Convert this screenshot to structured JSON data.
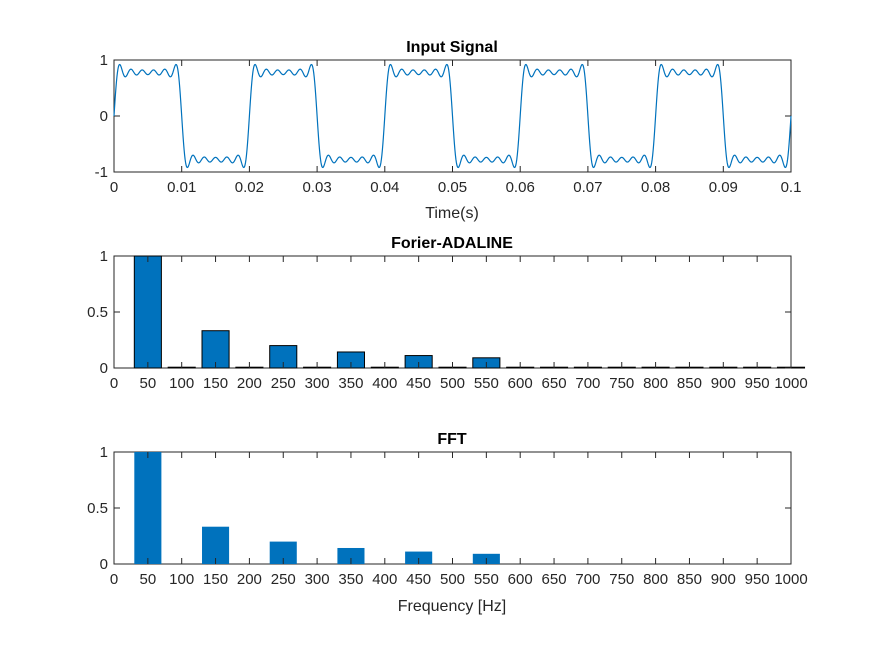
{
  "chart_data": [
    {
      "type": "line",
      "title": "Input Signal",
      "xlabel": "Time(s)",
      "ylabel": "",
      "xlim": [
        0,
        0.1
      ],
      "ylim": [
        -1,
        1
      ],
      "xticks": [
        0,
        0.01,
        0.02,
        0.03,
        0.04,
        0.05,
        0.06,
        0.07,
        0.08,
        0.09,
        0.1
      ],
      "xtick_labels": [
        "0",
        "0.01",
        "0.02",
        "0.03",
        "0.04",
        "0.05",
        "0.06",
        "0.07",
        "0.08",
        "0.09",
        "0.1"
      ],
      "yticks": [
        -1,
        0,
        1
      ],
      "ytick_labels": [
        "-1",
        "0",
        "1"
      ],
      "series": [
        {
          "signal": "square-wave partial Fourier sum",
          "fundamental_hz": 50,
          "harmonics": [
            {
              "freq_hz": 50,
              "amplitude": 1.0
            },
            {
              "freq_hz": 150,
              "amplitude": 0.333
            },
            {
              "freq_hz": 250,
              "amplitude": 0.2
            },
            {
              "freq_hz": 350,
              "amplitude": 0.143
            },
            {
              "freq_hz": 450,
              "amplitude": 0.111
            },
            {
              "freq_hz": 550,
              "amplitude": 0.091
            }
          ],
          "color": "#0072BD"
        }
      ],
      "grid": false
    },
    {
      "type": "bar",
      "title": "Forier-ADALINE",
      "xlabel": "",
      "ylabel": "",
      "xlim": [
        0,
        1000
      ],
      "ylim": [
        0,
        1
      ],
      "categories": [
        "50",
        "100",
        "150",
        "200",
        "250",
        "300",
        "350",
        "400",
        "450",
        "500",
        "550",
        "600",
        "650",
        "700",
        "750",
        "800",
        "850",
        "900",
        "950",
        "1000"
      ],
      "values": [
        1.0,
        0.0,
        0.333,
        0.0,
        0.2,
        0.0,
        0.143,
        0.0,
        0.111,
        0.0,
        0.091,
        0.0,
        0.0,
        0.0,
        0.0,
        0.0,
        0.0,
        0.0,
        0.0,
        0.0
      ],
      "xtick_labels": [
        "0",
        "50",
        "100",
        "150",
        "200",
        "250",
        "300",
        "350",
        "400",
        "450",
        "500",
        "550",
        "600",
        "650",
        "700",
        "750",
        "800",
        "850",
        "900",
        "950",
        "1000"
      ],
      "ytick_labels": [
        "0",
        "0.5",
        "1"
      ],
      "bar_color": "#0072BD",
      "bar_edge": "#000000",
      "grid": false
    },
    {
      "type": "bar",
      "title": "FFT",
      "xlabel": "Frequency [Hz]",
      "ylabel": "",
      "xlim": [
        0,
        1000
      ],
      "ylim": [
        0,
        1
      ],
      "categories": [
        "50",
        "100",
        "150",
        "200",
        "250",
        "300",
        "350",
        "400",
        "450",
        "500",
        "550",
        "600",
        "650",
        "700",
        "750",
        "800",
        "850",
        "900",
        "950",
        "1000"
      ],
      "values": [
        1.0,
        0.0,
        0.333,
        0.0,
        0.2,
        0.0,
        0.143,
        0.0,
        0.111,
        0.0,
        0.091,
        0.0,
        0.0,
        0.0,
        0.0,
        0.0,
        0.0,
        0.0,
        0.0,
        0.0
      ],
      "xtick_labels": [
        "0",
        "50",
        "100",
        "150",
        "200",
        "250",
        "300",
        "350",
        "400",
        "450",
        "500",
        "550",
        "600",
        "650",
        "700",
        "750",
        "800",
        "850",
        "900",
        "950",
        "1000"
      ],
      "ytick_labels": [
        "0",
        "0.5",
        "1"
      ],
      "bar_color": "#0072BD",
      "bar_edge": "none",
      "grid": false
    }
  ]
}
